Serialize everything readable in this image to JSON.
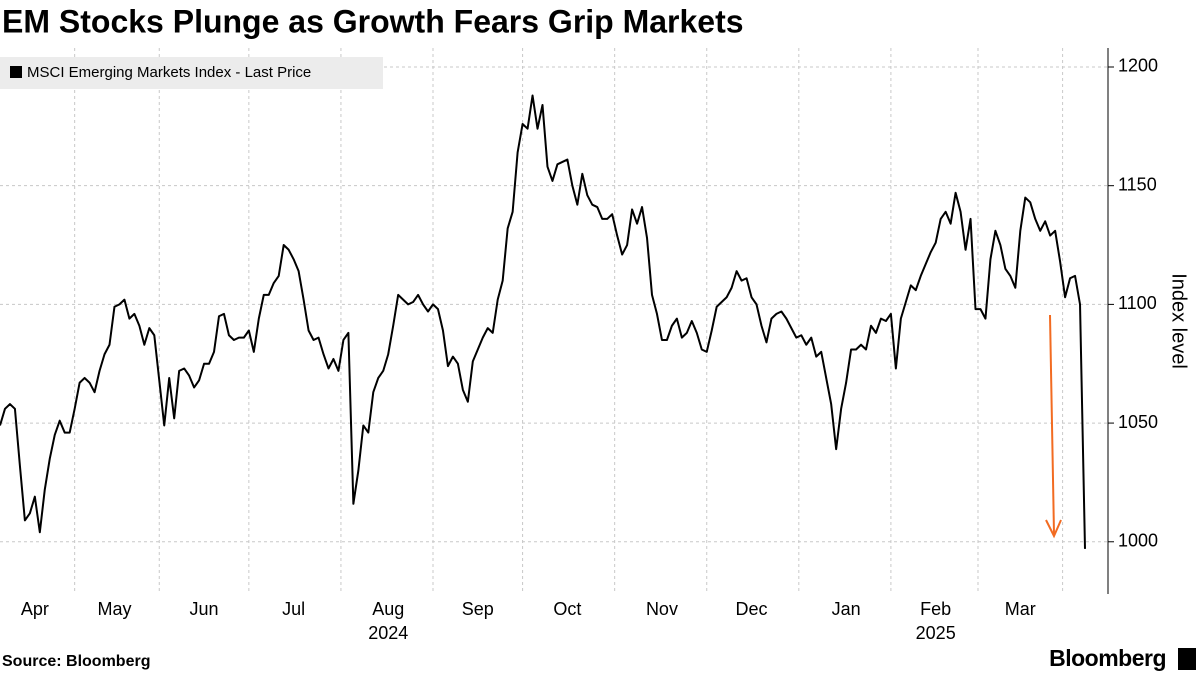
{
  "chart_data": {
    "type": "line",
    "title": "EM Stocks Plunge as Growth Fears Grip Markets",
    "source": "Source: Bloomberg",
    "brand": "Bloomberg",
    "ylabel": "Index level",
    "categories": [
      null,
      null,
      null,
      null,
      null,
      null,
      null,
      "Apr",
      null,
      null,
      null,
      null,
      null,
      null,
      null,
      null,
      null,
      null,
      null,
      null,
      null,
      null,
      null,
      "May",
      null,
      null,
      null,
      null,
      null,
      null,
      null,
      null,
      null,
      null,
      null,
      null,
      null,
      null,
      null,
      null,
      null,
      "Jun",
      null,
      null,
      null,
      null,
      null,
      null,
      null,
      null,
      null,
      null,
      null,
      null,
      null,
      null,
      null,
      null,
      null,
      "Jul",
      null,
      null,
      null,
      null,
      null,
      null,
      null,
      null,
      null,
      null,
      null,
      null,
      null,
      null,
      null,
      null,
      null,
      null,
      "Aug",
      null,
      null,
      null,
      null,
      null,
      null,
      null,
      null,
      null,
      null,
      null,
      null,
      null,
      null,
      null,
      null,
      null,
      "Sep",
      null,
      null,
      null,
      null,
      null,
      null,
      null,
      null,
      null,
      null,
      null,
      null,
      null,
      null,
      null,
      null,
      null,
      "Oct",
      null,
      null,
      null,
      null,
      null,
      null,
      null,
      null,
      null,
      null,
      null,
      null,
      null,
      null,
      null,
      null,
      null,
      null,
      "Nov",
      null,
      null,
      null,
      null,
      null,
      null,
      null,
      null,
      null,
      null,
      null,
      null,
      null,
      null,
      null,
      null,
      null,
      "Dec",
      null,
      null,
      null,
      null,
      null,
      null,
      null,
      null,
      null,
      null,
      null,
      null,
      null,
      null,
      null,
      null,
      null,
      null,
      "Jan",
      null,
      null,
      null,
      null,
      null,
      null,
      null,
      null,
      null,
      null,
      null,
      null,
      null,
      null,
      null,
      null,
      null,
      "Feb",
      null,
      null,
      null,
      null,
      null,
      null,
      null,
      null,
      null,
      null,
      null,
      null,
      null,
      null,
      null,
      null,
      "Mar",
      null,
      null,
      null,
      null,
      null,
      null,
      null,
      null,
      null,
      null,
      null,
      null,
      null
    ],
    "x_group_labels": [
      "2024",
      "2025"
    ],
    "series": [
      {
        "name": "MSCI Emerging Markets Index - Last Price",
        "color": "#000000",
        "values": [
          1049,
          1056,
          1058,
          1056,
          1032,
          1009,
          1012,
          1019,
          1004,
          1022,
          1035,
          1045,
          1051,
          1046,
          1046,
          1056,
          1067,
          1069,
          1067,
          1063,
          1072,
          1079,
          1083,
          1099,
          1100,
          1102,
          1094,
          1096,
          1091,
          1083,
          1090,
          1087,
          1068,
          1049,
          1069,
          1052,
          1072,
          1073,
          1070,
          1065,
          1068,
          1075,
          1075,
          1080,
          1095,
          1096,
          1087,
          1085,
          1086,
          1086,
          1089,
          1080,
          1094,
          1104,
          1104,
          1109,
          1112,
          1125,
          1123,
          1119,
          1114,
          1102,
          1089,
          1085,
          1086,
          1079,
          1073,
          1077,
          1072,
          1085,
          1088,
          1016,
          1030,
          1049,
          1046,
          1063,
          1069,
          1072,
          1079,
          1091,
          1104,
          1102,
          1100,
          1101,
          1104,
          1100,
          1097,
          1100,
          1098,
          1089,
          1074,
          1078,
          1075,
          1064,
          1059,
          1076,
          1081,
          1086,
          1090,
          1088,
          1102,
          1110,
          1132,
          1139,
          1164,
          1176,
          1174,
          1188,
          1174,
          1184,
          1158,
          1152,
          1159,
          1160,
          1161,
          1150,
          1142,
          1155,
          1146,
          1142,
          1141,
          1136,
          1136,
          1138,
          1129,
          1121,
          1125,
          1140,
          1134,
          1141,
          1128,
          1104,
          1096,
          1085,
          1085,
          1091,
          1094,
          1086,
          1088,
          1093,
          1088,
          1081,
          1080,
          1089,
          1099,
          1101,
          1103,
          1107,
          1114,
          1110,
          1111,
          1103,
          1100,
          1091,
          1084,
          1094,
          1096,
          1097,
          1094,
          1090,
          1086,
          1087,
          1083,
          1086,
          1078,
          1080,
          1069,
          1058,
          1039,
          1056,
          1067,
          1081,
          1081,
          1083,
          1081,
          1091,
          1088,
          1094,
          1093,
          1096,
          1073,
          1094,
          1101,
          1108,
          1106,
          1112,
          1117,
          1122,
          1126,
          1136,
          1139,
          1134,
          1147,
          1139,
          1123,
          1136,
          1098,
          1098,
          1094,
          1119,
          1131,
          1125,
          1115,
          1112,
          1107,
          1131,
          1145,
          1143,
          1136,
          1131,
          1135,
          1129,
          1131,
          1118,
          1103,
          1111,
          1112,
          1100,
          997
        ]
      }
    ],
    "ylim": [
      978,
      1208
    ],
    "yticks": [
      1000,
      1050,
      1100,
      1150,
      1200
    ],
    "grid": true
  }
}
